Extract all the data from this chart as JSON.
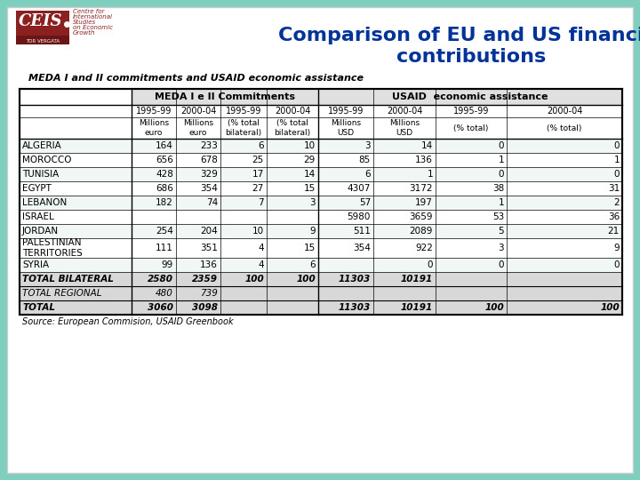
{
  "title": "Comparison of EU and US financial\ncontributions",
  "subtitle": "MEDA I and II commitments and USAID economic assistance",
  "source": "Source: European Commision, USAID Greenbook",
  "bg_color": "#7ecfbe",
  "title_color": "#003399",
  "rows": [
    [
      "ALGERIA",
      "164",
      "233",
      "6",
      "10",
      "3",
      "14",
      "0",
      "0"
    ],
    [
      "MOROCCO",
      "656",
      "678",
      "25",
      "29",
      "85",
      "136",
      "1",
      "1"
    ],
    [
      "TUNISIA",
      "428",
      "329",
      "17",
      "14",
      "6",
      "1",
      "0",
      "0"
    ],
    [
      "EGYPT",
      "686",
      "354",
      "27",
      "15",
      "4307",
      "3172",
      "38",
      "31"
    ],
    [
      "LEBANON",
      "182",
      "74",
      "7",
      "3",
      "57",
      "197",
      "1",
      "2"
    ],
    [
      "ISRAEL",
      "",
      "",
      "",
      "",
      "5980",
      "3659",
      "53",
      "36"
    ],
    [
      "JORDAN",
      "254",
      "204",
      "10",
      "9",
      "511",
      "2089",
      "5",
      "21"
    ],
    [
      "PALESTINIAN\nTERRITORIES",
      "111",
      "351",
      "4",
      "15",
      "354",
      "922",
      "3",
      "9"
    ],
    [
      "SYRIA",
      "99",
      "136",
      "4",
      "6",
      "",
      "0",
      "0",
      "0"
    ]
  ],
  "total_rows": [
    [
      "TOTAL BILATERAL",
      "2580",
      "2359",
      "100",
      "100",
      "11303",
      "10191",
      "",
      ""
    ],
    [
      "TOTAL REGIONAL",
      "480",
      "739",
      "",
      "",
      "",
      "",
      "",
      ""
    ],
    [
      "TOTAL",
      "3060",
      "3098",
      "",
      "",
      "11303",
      "10191",
      "100",
      "100"
    ]
  ]
}
